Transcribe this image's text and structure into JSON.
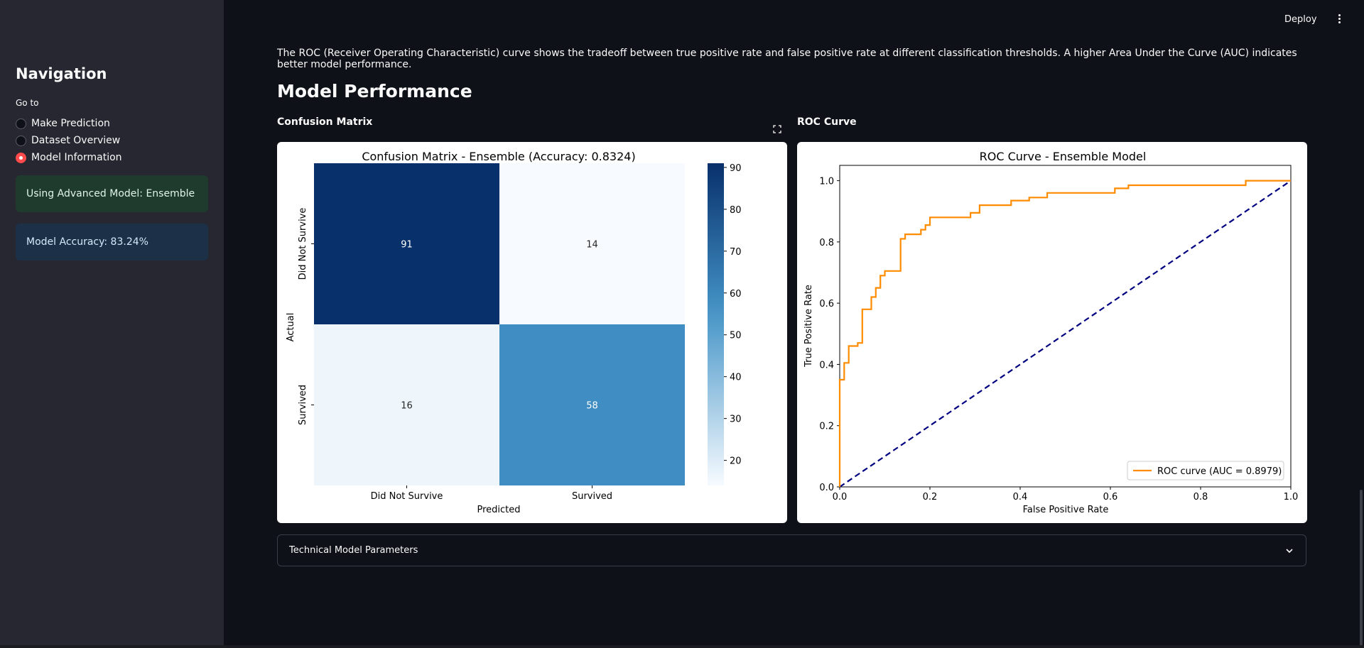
{
  "header": {
    "deploy_label": "Deploy",
    "menu_icon": "more-vertical-icon"
  },
  "sidebar": {
    "title": "Navigation",
    "goto_label": "Go to",
    "options": [
      {
        "label": "Make Prediction",
        "selected": false
      },
      {
        "label": "Dataset Overview",
        "selected": false
      },
      {
        "label": "Model Information",
        "selected": true
      }
    ],
    "success_alert": "Using Advanced Model: Ensemble",
    "info_alert": "Model Accuracy: 83.24%"
  },
  "main": {
    "intro": "The ROC (Receiver Operating Characteristic) curve shows the tradeoff between true positive rate and false positive rate at different classification thresholds. A higher Area Under the Curve (AUC) indicates better model performance.",
    "section_title": "Model Performance",
    "confusion_subtitle": "Confusion Matrix",
    "roc_subtitle": "ROC Curve",
    "expander_label": "Technical Model Parameters"
  },
  "colors": {
    "accent": "#ff4b4b",
    "roc_line": "#ff8c00",
    "diagonal": "#000080"
  },
  "chart_data": [
    {
      "type": "heatmap",
      "title": "Confusion Matrix - Ensemble (Accuracy: 0.8324)",
      "xlabel": "Predicted",
      "ylabel": "Actual",
      "x_categories": [
        "Did Not Survive",
        "Survived"
      ],
      "y_categories": [
        "Did Not Survive",
        "Survived"
      ],
      "values": [
        [
          91,
          14
        ],
        [
          16,
          58
        ]
      ],
      "colorbar_ticks": [
        "90",
        "80",
        "70",
        "60",
        "50",
        "40",
        "30",
        "20"
      ],
      "colorbar_range": [
        14,
        91
      ],
      "colormap": "Blues"
    },
    {
      "type": "line",
      "title": "ROC Curve - Ensemble Model",
      "xlabel": "False Positive Rate",
      "ylabel": "True Positive Rate",
      "xlim": [
        0.0,
        1.0
      ],
      "ylim": [
        0.0,
        1.05
      ],
      "x_ticks": [
        "0.0",
        "0.2",
        "0.4",
        "0.6",
        "0.8",
        "1.0"
      ],
      "y_ticks": [
        "0.0",
        "0.2",
        "0.4",
        "0.6",
        "0.8",
        "1.0"
      ],
      "legend": "lower right",
      "series": [
        {
          "name": "ROC curve (AUC = 0.8979)",
          "x": [
            0,
            0,
            0.01,
            0.01,
            0.02,
            0.02,
            0.04,
            0.04,
            0.05,
            0.05,
            0.07,
            0.07,
            0.08,
            0.08,
            0.09,
            0.09,
            0.1,
            0.1,
            0.135,
            0.135,
            0.145,
            0.145,
            0.18,
            0.18,
            0.19,
            0.19,
            0.2,
            0.2,
            0.29,
            0.29,
            0.31,
            0.31,
            0.38,
            0.38,
            0.42,
            0.42,
            0.46,
            0.46,
            0.61,
            0.61,
            0.64,
            0.64,
            0.9,
            0.9,
            1.0
          ],
          "y": [
            0,
            0.35,
            0.35,
            0.405,
            0.405,
            0.46,
            0.46,
            0.47,
            0.47,
            0.58,
            0.58,
            0.62,
            0.62,
            0.65,
            0.65,
            0.69,
            0.69,
            0.705,
            0.705,
            0.81,
            0.81,
            0.825,
            0.825,
            0.84,
            0.84,
            0.855,
            0.855,
            0.88,
            0.88,
            0.895,
            0.895,
            0.92,
            0.92,
            0.935,
            0.935,
            0.945,
            0.945,
            0.96,
            0.96,
            0.975,
            0.975,
            0.985,
            0.985,
            1.0,
            1.0
          ]
        },
        {
          "name": "",
          "x": [
            0,
            1
          ],
          "y": [
            0,
            1
          ],
          "style": "dashed"
        }
      ]
    }
  ]
}
